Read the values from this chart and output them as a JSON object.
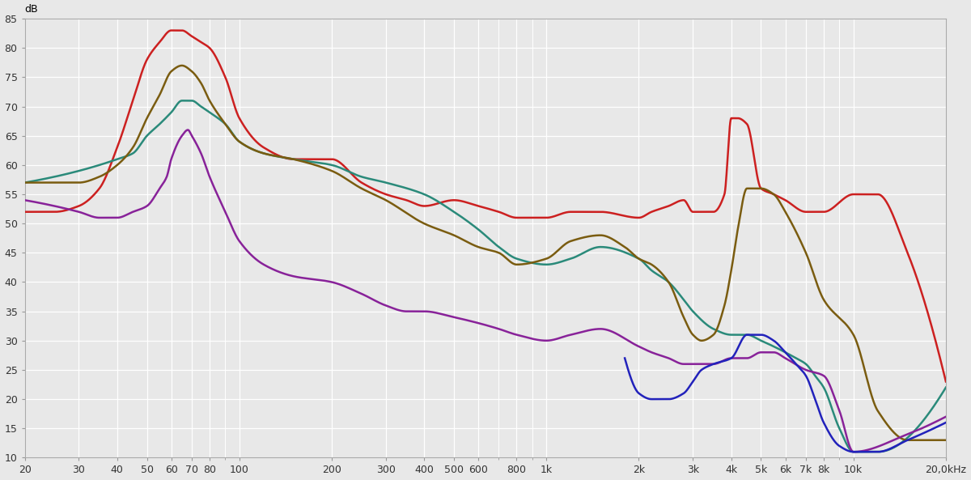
{
  "ylabel": "dB",
  "ylim": [
    10,
    85
  ],
  "yticks": [
    10,
    15,
    20,
    25,
    30,
    35,
    40,
    45,
    50,
    55,
    60,
    65,
    70,
    75,
    80,
    85
  ],
  "xticks": [
    20,
    30,
    40,
    50,
    60,
    70,
    80,
    100,
    200,
    300,
    400,
    500,
    600,
    800,
    1000,
    2000,
    3000,
    4000,
    5000,
    6000,
    7000,
    8000,
    10000,
    20000
  ],
  "xtick_labels": [
    "20",
    "30",
    "40",
    "50",
    "60",
    "70",
    "80",
    "100",
    "200",
    "300",
    "400",
    "500",
    "600",
    "800",
    "1k",
    "2k",
    "3k",
    "4k",
    "5k",
    "6k",
    "7k",
    "8k",
    "10k",
    "20,0kHz"
  ],
  "bg_color": "#e8e8e8",
  "grid_color": "#ffffff",
  "curves": {
    "red": {
      "color": "#cc2020",
      "lw": 1.8,
      "freqs": [
        20,
        25,
        30,
        35,
        40,
        45,
        50,
        55,
        60,
        63,
        65,
        70,
        75,
        80,
        90,
        100,
        120,
        150,
        200,
        250,
        300,
        350,
        400,
        500,
        600,
        700,
        800,
        1000,
        1200,
        1500,
        2000,
        2200,
        2500,
        2800,
        3000,
        3500,
        3800,
        4000,
        4200,
        4500,
        5000,
        5500,
        6000,
        7000,
        8000,
        10000,
        12000,
        15000,
        20000
      ],
      "values": [
        52,
        52,
        53,
        56,
        63,
        71,
        78,
        81,
        83,
        83,
        83,
        82,
        81,
        80,
        75,
        68,
        63,
        61,
        61,
        57,
        55,
        54,
        53,
        54,
        53,
        52,
        51,
        51,
        52,
        52,
        51,
        52,
        53,
        54,
        52,
        52,
        55,
        68,
        68,
        67,
        56,
        55,
        54,
        52,
        52,
        55,
        55,
        45,
        23
      ]
    },
    "teal": {
      "color": "#2a8a7a",
      "lw": 1.8,
      "freqs": [
        20,
        25,
        30,
        35,
        40,
        45,
        50,
        55,
        60,
        65,
        70,
        75,
        80,
        90,
        100,
        120,
        150,
        200,
        250,
        300,
        400,
        500,
        600,
        700,
        800,
        1000,
        1200,
        1500,
        2000,
        2200,
        2500,
        2800,
        3000,
        3500,
        4000,
        4500,
        5000,
        5500,
        6000,
        6500,
        7000,
        7500,
        8000,
        9000,
        10000,
        12000,
        20000
      ],
      "values": [
        57,
        58,
        59,
        60,
        61,
        62,
        65,
        67,
        69,
        71,
        71,
        70,
        69,
        67,
        64,
        62,
        61,
        60,
        58,
        57,
        55,
        52,
        49,
        46,
        44,
        43,
        44,
        46,
        44,
        42,
        40,
        37,
        35,
        32,
        31,
        31,
        30,
        29,
        28,
        27,
        26,
        24,
        22,
        15,
        11,
        11,
        22
      ]
    },
    "purple": {
      "color": "#882299",
      "lw": 1.8,
      "freqs": [
        20,
        25,
        30,
        35,
        40,
        45,
        50,
        55,
        58,
        60,
        65,
        68,
        70,
        75,
        80,
        90,
        100,
        120,
        150,
        200,
        250,
        300,
        350,
        400,
        500,
        600,
        700,
        800,
        1000,
        1200,
        1500,
        2000,
        2200,
        2500,
        2800,
        3000,
        3500,
        4000,
        4500,
        5000,
        5500,
        6000,
        7000,
        8000,
        9000,
        10000,
        15000,
        20000
      ],
      "values": [
        54,
        53,
        52,
        51,
        51,
        52,
        53,
        56,
        58,
        61,
        65,
        66,
        65,
        62,
        58,
        52,
        47,
        43,
        41,
        40,
        38,
        36,
        35,
        35,
        34,
        33,
        32,
        31,
        30,
        31,
        32,
        29,
        28,
        27,
        26,
        26,
        26,
        27,
        27,
        28,
        28,
        27,
        25,
        24,
        18,
        11,
        14,
        17
      ]
    },
    "brown": {
      "color": "#7a5c10",
      "lw": 1.8,
      "freqs": [
        20,
        25,
        30,
        35,
        40,
        45,
        50,
        55,
        60,
        65,
        70,
        75,
        80,
        90,
        100,
        120,
        150,
        200,
        250,
        300,
        400,
        500,
        600,
        700,
        800,
        1000,
        1200,
        1500,
        1800,
        2000,
        2200,
        2500,
        2800,
        3000,
        3200,
        3500,
        3800,
        4000,
        4200,
        4500,
        5000,
        5500,
        6000,
        7000,
        8000,
        10000,
        12000,
        15000,
        20000
      ],
      "values": [
        57,
        57,
        57,
        58,
        60,
        63,
        68,
        72,
        76,
        77,
        76,
        74,
        71,
        67,
        64,
        62,
        61,
        59,
        56,
        54,
        50,
        48,
        46,
        45,
        43,
        44,
        47,
        48,
        46,
        44,
        43,
        40,
        34,
        31,
        30,
        31,
        36,
        42,
        49,
        56,
        56,
        55,
        52,
        45,
        37,
        31,
        18,
        13,
        13
      ]
    },
    "blue": {
      "color": "#2222bb",
      "lw": 1.8,
      "freqs": [
        1800,
        2000,
        2200,
        2500,
        2800,
        3000,
        3200,
        3500,
        4000,
        4500,
        5000,
        5500,
        6000,
        6500,
        7000,
        7500,
        8000,
        9000,
        10000,
        12000,
        15000,
        20000
      ],
      "values": [
        27,
        21,
        20,
        20,
        21,
        23,
        25,
        26,
        27,
        31,
        31,
        30,
        28,
        26,
        24,
        20,
        16,
        12,
        11,
        11,
        13,
        16
      ]
    }
  }
}
